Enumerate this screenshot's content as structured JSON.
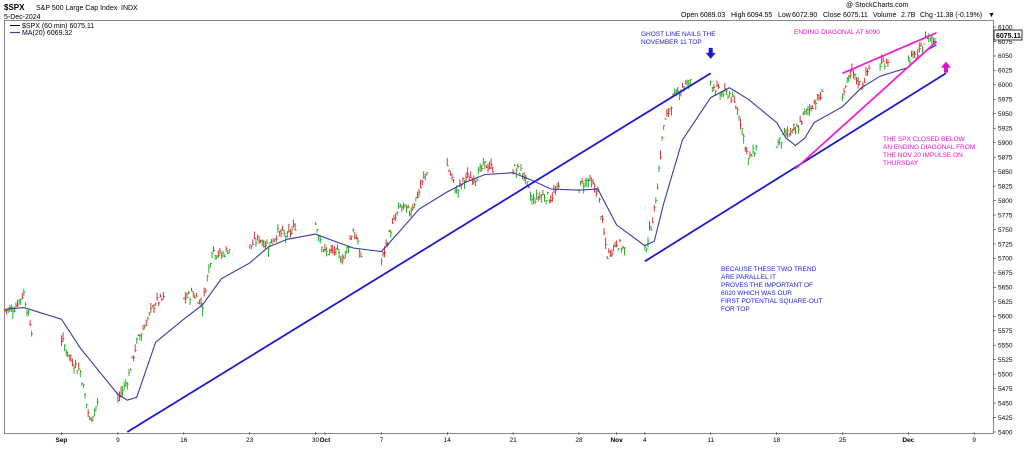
{
  "header": {
    "symbol": "$SPX",
    "name": "S&P 500 Large Cap Index",
    "exchange": "INDX",
    "date": "5-Dec-2024",
    "open_label": "Open",
    "open": "6089.03",
    "high_label": "High",
    "high": "6094.55",
    "low_label": "Low",
    "low": "6072.90",
    "close_label": "Close",
    "close": "6075.11",
    "vol_label": "Volume",
    "vol": "2.7B",
    "chg_label": "Chg",
    "chg": "-11.38 (-0.19%)",
    "chg_arrow": "▼",
    "watermark": "@ StockCharts.com",
    "legend_price": "$SPX (60 min) 6075.11",
    "legend_ma": "MA(20) 6069.32",
    "last_price_tag": "6075.11"
  },
  "colors": {
    "up": "#18a818",
    "down": "#d82020",
    "ma": "#3a3aa0",
    "trendline": "#1a1ad8",
    "diagonal": "#f020d8",
    "annotation_blue": "#1a1ad8",
    "annotation_magenta": "#e010c8"
  },
  "annotations": {
    "ghost_line": [
      "GHOST LINE NAILS THE",
      "NOVEMBER 11 TOP"
    ],
    "ending_diagonal": [
      "ENDING DIAGONAL AT  6090"
    ],
    "spx_closed": [
      "THE SPX CLOSED BELOW",
      "AN ENDING DIAGONAL FROM",
      "THE NOV 20 IMPULSE ON",
      "THURSDAY"
    ],
    "parallel": [
      "BECAUSE THESE TWO TREND",
      "ARE PARALLEL IT",
      "PROVES THE IMPORTANT OF",
      "6020 WHICH WAS OUR",
      "FIRST POTENTIAL SQUARE-OUT",
      "FOR  TOP"
    ]
  },
  "chart_data": {
    "type": "line",
    "title": "$SPX S&P 500 Large Cap Index INDX",
    "interval": "60 min",
    "ylim": [
      5400,
      6100
    ],
    "y_ticks": [
      5400,
      5425,
      5450,
      5475,
      5500,
      5525,
      5550,
      5575,
      5600,
      5625,
      5650,
      5675,
      5700,
      5725,
      5750,
      5775,
      5800,
      5825,
      5850,
      5875,
      5900,
      5925,
      5950,
      5975,
      6000,
      6025,
      6050,
      6075,
      6100
    ],
    "x_ticks": [
      {
        "label": "Sep",
        "date": "2024-09-03"
      },
      {
        "label": "9",
        "date": "2024-09-09"
      },
      {
        "label": "16",
        "date": "2024-09-16"
      },
      {
        "label": "23",
        "date": "2024-09-23"
      },
      {
        "label": "30",
        "date": "2024-09-30"
      },
      {
        "label": "Oct",
        "date": "2024-10-01"
      },
      {
        "label": "7",
        "date": "2024-10-07"
      },
      {
        "label": "14",
        "date": "2024-10-14"
      },
      {
        "label": "21",
        "date": "2024-10-21"
      },
      {
        "label": "28",
        "date": "2024-10-28"
      },
      {
        "label": "Nov",
        "date": "2024-11-01"
      },
      {
        "label": "4",
        "date": "2024-11-04"
      },
      {
        "label": "11",
        "date": "2024-11-11"
      },
      {
        "label": "18",
        "date": "2024-11-18"
      },
      {
        "label": "25",
        "date": "2024-11-25"
      },
      {
        "label": "Dec",
        "date": "2024-12-02"
      },
      {
        "label": "9",
        "date": "2024-12-09"
      }
    ],
    "series": [
      {
        "name": "$SPX (60 min)",
        "style": "hlc_bars",
        "points": [
          {
            "date": "2024-08-28",
            "value": 5610
          },
          {
            "date": "2024-08-29",
            "value": 5615
          },
          {
            "date": "2024-08-30",
            "value": 5640
          },
          {
            "date": "2024-09-03",
            "value": 5560
          },
          {
            "date": "2024-09-04",
            "value": 5525
          },
          {
            "date": "2024-09-05",
            "value": 5505
          },
          {
            "date": "2024-09-06",
            "value": 5420
          },
          {
            "date": "2024-09-09",
            "value": 5455
          },
          {
            "date": "2024-09-10",
            "value": 5490
          },
          {
            "date": "2024-09-11",
            "value": 5555
          },
          {
            "date": "2024-09-12",
            "value": 5590
          },
          {
            "date": "2024-09-13",
            "value": 5625
          },
          {
            "date": "2024-09-16",
            "value": 5630
          },
          {
            "date": "2024-09-17",
            "value": 5640
          },
          {
            "date": "2024-09-18",
            "value": 5620
          },
          {
            "date": "2024-09-19",
            "value": 5715
          },
          {
            "date": "2024-09-20",
            "value": 5705
          },
          {
            "date": "2024-09-23",
            "value": 5720
          },
          {
            "date": "2024-09-24",
            "value": 5735
          },
          {
            "date": "2024-09-25",
            "value": 5722
          },
          {
            "date": "2024-09-26",
            "value": 5745
          },
          {
            "date": "2024-09-27",
            "value": 5738
          },
          {
            "date": "2024-09-30",
            "value": 5760
          },
          {
            "date": "2024-10-01",
            "value": 5710
          },
          {
            "date": "2024-10-02",
            "value": 5712
          },
          {
            "date": "2024-10-03",
            "value": 5700
          },
          {
            "date": "2024-10-04",
            "value": 5750
          },
          {
            "date": "2024-10-07",
            "value": 5695
          },
          {
            "date": "2024-10-08",
            "value": 5750
          },
          {
            "date": "2024-10-09",
            "value": 5790
          },
          {
            "date": "2024-10-10",
            "value": 5780
          },
          {
            "date": "2024-10-11",
            "value": 5815
          },
          {
            "date": "2024-10-14",
            "value": 5860
          },
          {
            "date": "2024-10-15",
            "value": 5815
          },
          {
            "date": "2024-10-16",
            "value": 5840
          },
          {
            "date": "2024-10-17",
            "value": 5840
          },
          {
            "date": "2024-10-18",
            "value": 5862
          },
          {
            "date": "2024-10-21",
            "value": 5855
          },
          {
            "date": "2024-10-22",
            "value": 5850
          },
          {
            "date": "2024-10-23",
            "value": 5800
          },
          {
            "date": "2024-10-24",
            "value": 5810
          },
          {
            "date": "2024-10-25",
            "value": 5805
          },
          {
            "date": "2024-10-28",
            "value": 5825
          },
          {
            "date": "2024-10-29",
            "value": 5835
          },
          {
            "date": "2024-10-30",
            "value": 5815
          },
          {
            "date": "2024-10-31",
            "value": 5705
          },
          {
            "date": "2024-11-01",
            "value": 5728
          },
          {
            "date": "2024-11-04",
            "value": 5712
          },
          {
            "date": "2024-11-05",
            "value": 5780
          },
          {
            "date": "2024-11-06",
            "value": 5930
          },
          {
            "date": "2024-11-07",
            "value": 5975
          },
          {
            "date": "2024-11-08",
            "value": 5998
          },
          {
            "date": "2024-11-11",
            "value": 6005
          },
          {
            "date": "2024-11-12",
            "value": 5985
          },
          {
            "date": "2024-11-13",
            "value": 5985
          },
          {
            "date": "2024-11-14",
            "value": 5950
          },
          {
            "date": "2024-11-15",
            "value": 5870
          },
          {
            "date": "2024-11-18",
            "value": 5895
          },
          {
            "date": "2024-11-19",
            "value": 5915
          },
          {
            "date": "2024-11-20",
            "value": 5918
          },
          {
            "date": "2024-11-21",
            "value": 5950
          },
          {
            "date": "2024-11-22",
            "value": 5970
          },
          {
            "date": "2024-11-25",
            "value": 5985
          },
          {
            "date": "2024-11-26",
            "value": 6020
          },
          {
            "date": "2024-11-27",
            "value": 5998
          },
          {
            "date": "2024-11-29",
            "value": 6035
          },
          {
            "date": "2024-12-02",
            "value": 6045
          },
          {
            "date": "2024-12-03",
            "value": 6050
          },
          {
            "date": "2024-12-04",
            "value": 6085
          },
          {
            "date": "2024-12-05",
            "value": 6075
          }
        ]
      },
      {
        "name": "MA(20)",
        "style": "line",
        "points": [
          {
            "date": "2024-08-28",
            "value": 5612
          },
          {
            "date": "2024-08-30",
            "value": 5615
          },
          {
            "date": "2024-09-03",
            "value": 5595
          },
          {
            "date": "2024-09-05",
            "value": 5545
          },
          {
            "date": "2024-09-09",
            "value": 5465
          },
          {
            "date": "2024-09-10",
            "value": 5455
          },
          {
            "date": "2024-09-11",
            "value": 5460
          },
          {
            "date": "2024-09-13",
            "value": 5555
          },
          {
            "date": "2024-09-16",
            "value": 5595
          },
          {
            "date": "2024-09-18",
            "value": 5620
          },
          {
            "date": "2024-09-20",
            "value": 5665
          },
          {
            "date": "2024-09-23",
            "value": 5692
          },
          {
            "date": "2024-09-25",
            "value": 5720
          },
          {
            "date": "2024-09-27",
            "value": 5733
          },
          {
            "date": "2024-09-30",
            "value": 5742
          },
          {
            "date": "2024-10-02",
            "value": 5730
          },
          {
            "date": "2024-10-04",
            "value": 5718
          },
          {
            "date": "2024-10-07",
            "value": 5712
          },
          {
            "date": "2024-10-09",
            "value": 5748
          },
          {
            "date": "2024-10-11",
            "value": 5785
          },
          {
            "date": "2024-10-14",
            "value": 5815
          },
          {
            "date": "2024-10-16",
            "value": 5832
          },
          {
            "date": "2024-10-18",
            "value": 5845
          },
          {
            "date": "2024-10-21",
            "value": 5848
          },
          {
            "date": "2024-10-23",
            "value": 5835
          },
          {
            "date": "2024-10-25",
            "value": 5820
          },
          {
            "date": "2024-10-28",
            "value": 5818
          },
          {
            "date": "2024-10-30",
            "value": 5820
          },
          {
            "date": "2024-11-01",
            "value": 5758
          },
          {
            "date": "2024-11-04",
            "value": 5722
          },
          {
            "date": "2024-11-05",
            "value": 5730
          },
          {
            "date": "2024-11-06",
            "value": 5795
          },
          {
            "date": "2024-11-08",
            "value": 5905
          },
          {
            "date": "2024-11-11",
            "value": 5978
          },
          {
            "date": "2024-11-13",
            "value": 5995
          },
          {
            "date": "2024-11-15",
            "value": 5975
          },
          {
            "date": "2024-11-18",
            "value": 5935
          },
          {
            "date": "2024-11-19",
            "value": 5908
          },
          {
            "date": "2024-11-20",
            "value": 5895
          },
          {
            "date": "2024-11-21",
            "value": 5908
          },
          {
            "date": "2024-11-22",
            "value": 5935
          },
          {
            "date": "2024-11-25",
            "value": 5962
          },
          {
            "date": "2024-11-27",
            "value": 5995
          },
          {
            "date": "2024-11-29",
            "value": 6015
          },
          {
            "date": "2024-12-02",
            "value": 6030
          },
          {
            "date": "2024-12-03",
            "value": 6045
          },
          {
            "date": "2024-12-04",
            "value": 6060
          },
          {
            "date": "2024-12-05",
            "value": 6069
          }
        ]
      }
    ],
    "trendlines": [
      {
        "name": "upper channel line",
        "color": "#1a1ad8",
        "from": {
          "date": "2024-09-10",
          "value": 5400
        },
        "to": {
          "date": "2024-11-11",
          "value": 6020
        }
      },
      {
        "name": "lower channel line",
        "color": "#1a1ad8",
        "from": {
          "date": "2024-11-04",
          "value": 5695
        },
        "to": {
          "date": "2024-12-06",
          "value": 6020
        }
      },
      {
        "name": "ending diagonal upper",
        "color": "#f020d8",
        "from": {
          "date": "2024-11-25",
          "value": 6020
        },
        "to": {
          "date": "2024-12-05",
          "value": 6090
        }
      },
      {
        "name": "ending diagonal lower",
        "color": "#f020d8",
        "from": {
          "date": "2024-11-20",
          "value": 5855
        },
        "to": {
          "date": "2024-12-05",
          "value": 6075
        }
      }
    ],
    "markers": [
      {
        "type": "arrow-down",
        "color": "#1a1ad8",
        "date": "2024-11-11",
        "value": 6050
      },
      {
        "type": "arrow-up",
        "color": "#e010c8",
        "date": "2024-12-06",
        "value": 6035
      }
    ],
    "grid": false
  }
}
